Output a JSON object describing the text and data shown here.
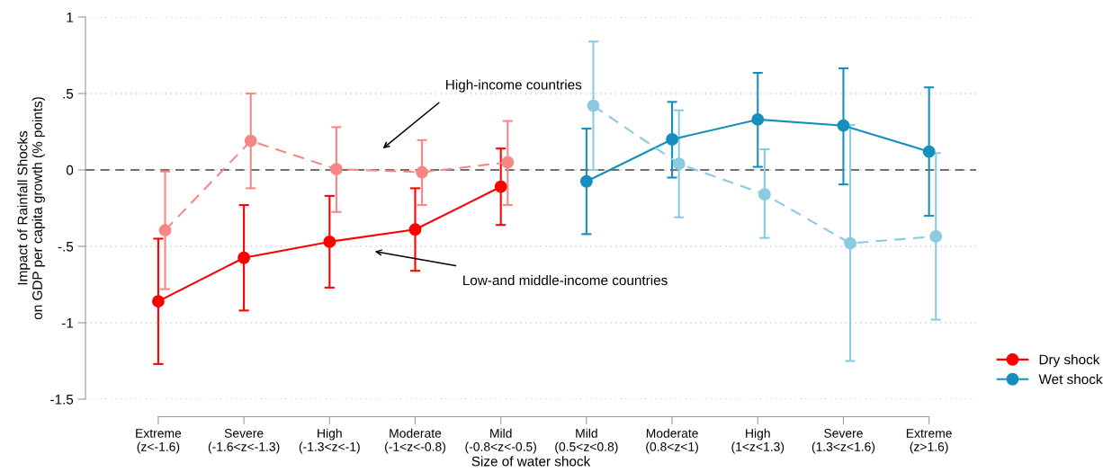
{
  "chart_data": {
    "type": "line",
    "xlabel": "Size of water shock",
    "ylabel": "Impact of Rainfall Shocks\non GDP per capita growth (% points)",
    "categories": [
      "Extreme\n(z<-1.6)",
      "Severe\n(-1.6<z<-1.3)",
      "High\n(-1.3<z<-1)",
      "Moderate\n(-1<z<-0.8)",
      "Mild\n(-0.8<z<-0.5)",
      "Mild\n(0.5<z<0.8)",
      "Moderate\n(0.8<z<1)",
      "High\n(1<z<1.3)",
      "Severe\n(1.3<z<1.6)",
      "Extreme\n(z>1.6)"
    ],
    "series": [
      {
        "name": "Dry shock",
        "color": "#ff0000",
        "line_style": "solid",
        "values": [
          -0.86,
          -0.575,
          -0.47,
          -0.39,
          -0.11,
          null,
          null,
          null,
          null,
          null
        ],
        "errors": [
          [
            -1.27,
            -0.45
          ],
          [
            -0.92,
            -0.23
          ],
          [
            -0.77,
            -0.17
          ],
          [
            -0.66,
            -0.12
          ],
          [
            -0.36,
            0.14
          ],
          null,
          null,
          null,
          null,
          null
        ]
      },
      {
        "name": "Wet shock",
        "color": "#168fbf",
        "line_style": "solid",
        "values": [
          null,
          null,
          null,
          null,
          null,
          -0.075,
          0.2,
          0.33,
          0.29,
          0.12
        ],
        "errors": [
          null,
          null,
          null,
          null,
          null,
          [
            -0.42,
            0.27
          ],
          [
            -0.05,
            0.445
          ],
          [
            0.02,
            0.635
          ],
          [
            -0.095,
            0.665
          ],
          [
            -0.3,
            0.54
          ]
        ]
      },
      {
        "color": "#f78787",
        "line_style": "dashed",
        "values": [
          -0.395,
          0.19,
          0.005,
          -0.015,
          0.05,
          null,
          null,
          null,
          null,
          null
        ],
        "errors": [
          [
            -0.78,
            -0.01
          ],
          [
            -0.12,
            0.5
          ],
          [
            -0.275,
            0.28
          ],
          [
            -0.23,
            0.195
          ],
          [
            -0.23,
            0.32
          ],
          null,
          null,
          null,
          null,
          null
        ]
      },
      {
        "color": "#8ccae0",
        "line_style": "dashed",
        "values": [
          null,
          null,
          null,
          null,
          null,
          0.42,
          0.04,
          -0.16,
          -0.48,
          -0.435
        ],
        "errors": [
          null,
          null,
          null,
          null,
          null,
          [
            0.0,
            0.84
          ],
          [
            -0.31,
            0.39
          ],
          [
            -0.445,
            0.135
          ],
          [
            -1.25,
            0.295
          ],
          [
            -0.98,
            0.11
          ]
        ]
      }
    ],
    "ylim": [
      -1.5,
      1
    ],
    "yticks": [
      {
        "value": -1.5,
        "label": "-1.5"
      },
      {
        "value": -1,
        "label": "-1"
      },
      {
        "value": -0.5,
        "label": "-.5"
      },
      0,
      {
        "value": 0.5,
        "label": ".5"
      },
      1
    ],
    "ref_lines": [
      {
        "axis": "y",
        "value": 0,
        "color": "#444444",
        "line_style": "dashed"
      }
    ],
    "annotations": [
      "High-income countries",
      "Low-and middle-income countries"
    ],
    "grid": "y",
    "legend": "right",
    "marker": "circle"
  }
}
